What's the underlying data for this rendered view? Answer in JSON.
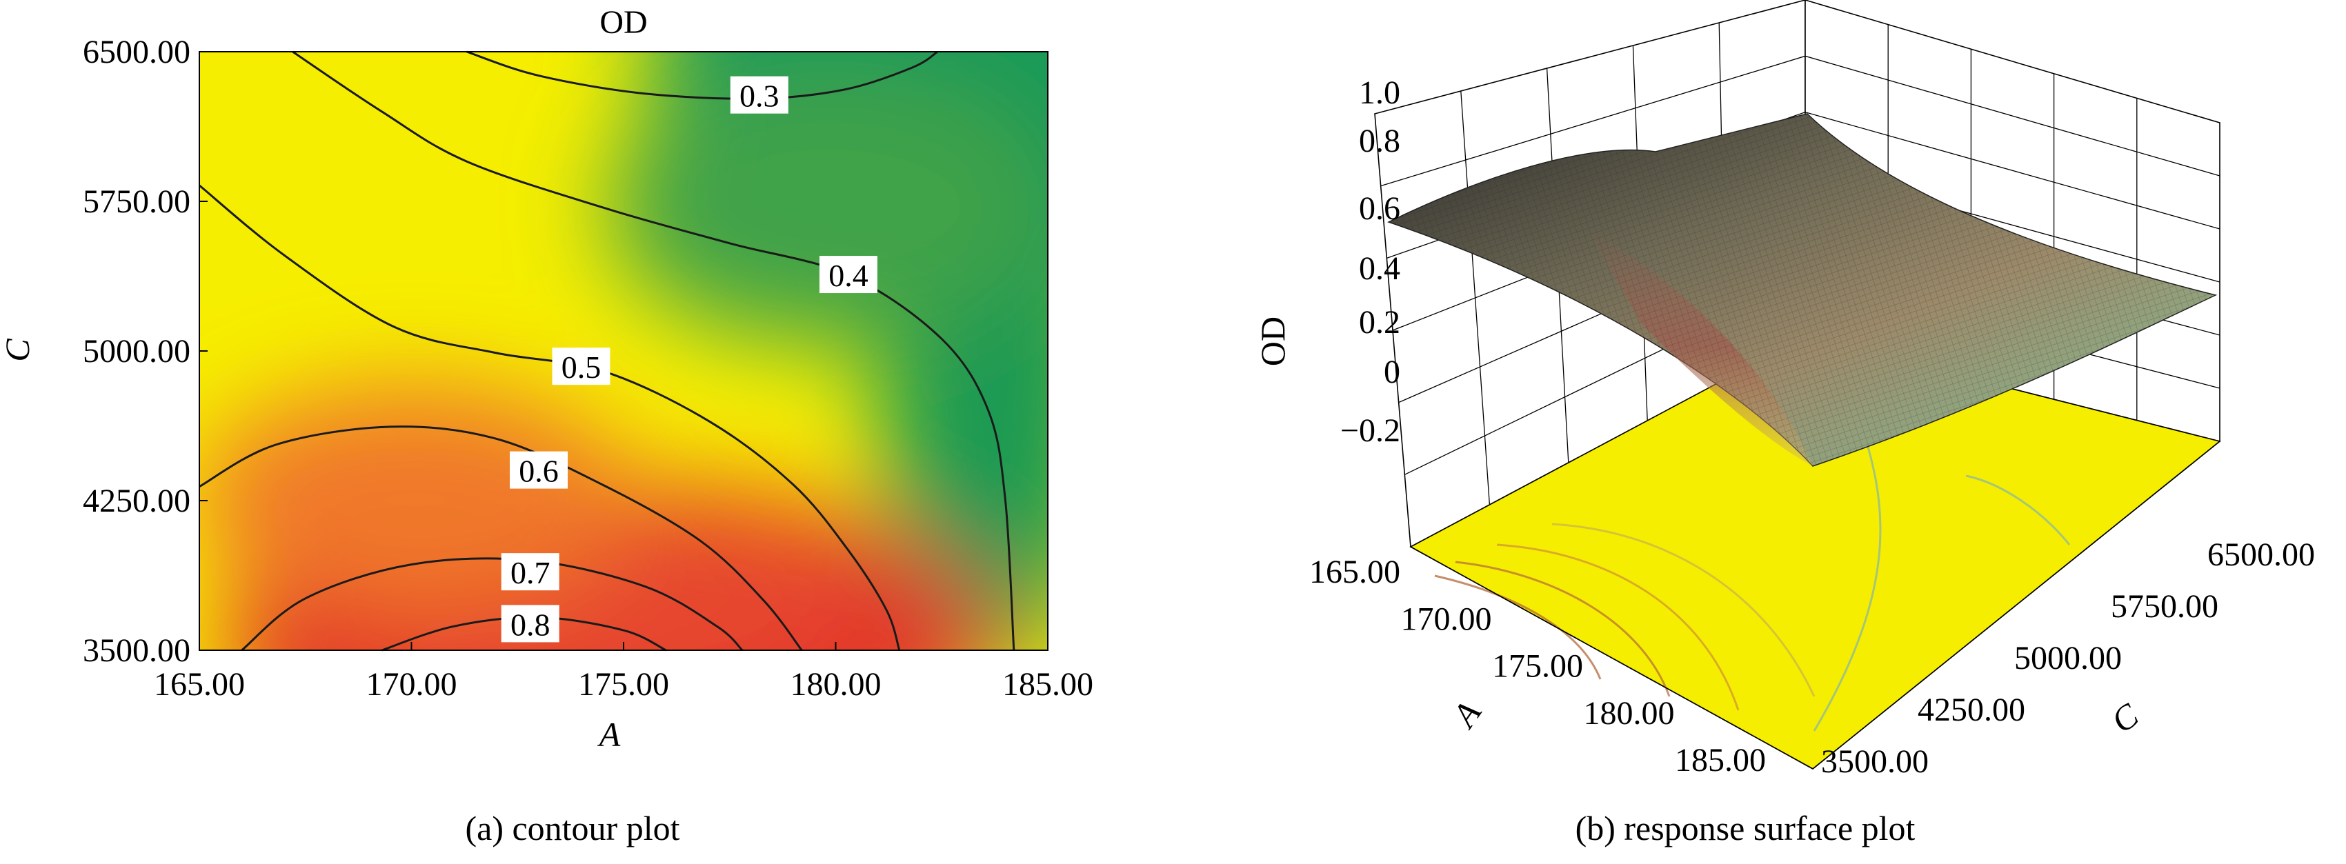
{
  "captions": {
    "a": "(a) contour plot",
    "b": "(b) response surface plot"
  },
  "chart_data": [
    {
      "type": "heatmap",
      "subtype": "contour",
      "title": "OD",
      "xlabel": "A",
      "ylabel": "C",
      "xlim": [
        165,
        185
      ],
      "ylim": [
        3500,
        6500
      ],
      "x_ticks": [
        "165.00",
        "170.00",
        "175.00",
        "180.00",
        "185.00"
      ],
      "y_ticks": [
        "3500.00",
        "4250.00",
        "5000.00",
        "5750.00",
        "6500.00"
      ],
      "contour_levels": [
        {
          "level": 0.3,
          "label": "0.3",
          "label_at": [
            178.2,
            6280
          ],
          "points": [
            [
              171.3,
              6500
            ],
            [
              173.0,
              6380
            ],
            [
              175.5,
              6290
            ],
            [
              178.2,
              6265
            ],
            [
              180.2,
              6310
            ],
            [
              181.8,
              6420
            ],
            [
              182.4,
              6500
            ]
          ]
        },
        {
          "level": 0.4,
          "label": "0.4",
          "label_at": [
            180.3,
            5380
          ],
          "points": [
            [
              167.2,
              6500
            ],
            [
              169.3,
              6200
            ],
            [
              171.3,
              5950
            ],
            [
              174.5,
              5720
            ],
            [
              177.5,
              5540
            ],
            [
              180.3,
              5380
            ],
            [
              182.5,
              5060
            ],
            [
              183.6,
              4700
            ],
            [
              184.0,
              4250
            ],
            [
              184.2,
              3500
            ]
          ]
        },
        {
          "level": 0.5,
          "label": "0.5",
          "label_at": [
            174.0,
            4920
          ],
          "points": [
            [
              165.0,
              5830
            ],
            [
              167.0,
              5480
            ],
            [
              169.6,
              5120
            ],
            [
              172.0,
              4990
            ],
            [
              174.5,
              4900
            ],
            [
              177.0,
              4650
            ],
            [
              179.0,
              4330
            ],
            [
              180.3,
              4000
            ],
            [
              181.2,
              3700
            ],
            [
              181.5,
              3500
            ]
          ]
        },
        {
          "level": 0.6,
          "label": "0.6",
          "label_at": [
            173.0,
            4400
          ],
          "points": [
            [
              165.0,
              4320
            ],
            [
              166.8,
              4530
            ],
            [
              169.5,
              4620
            ],
            [
              172.0,
              4560
            ],
            [
              174.5,
              4330
            ],
            [
              176.8,
              4050
            ],
            [
              178.3,
              3750
            ],
            [
              179.2,
              3500
            ]
          ]
        },
        {
          "level": 0.7,
          "label": "0.7",
          "label_at": [
            172.8,
            3890
          ],
          "points": [
            [
              166.0,
              3500
            ],
            [
              167.5,
              3760
            ],
            [
              170.0,
              3930
            ],
            [
              172.8,
              3950
            ],
            [
              175.5,
              3820
            ],
            [
              177.2,
              3620
            ],
            [
              177.8,
              3500
            ]
          ]
        },
        {
          "level": 0.8,
          "label": "0.8",
          "label_at": [
            172.8,
            3630
          ],
          "points": [
            [
              169.3,
              3500
            ],
            [
              171.0,
              3620
            ],
            [
              173.0,
              3665
            ],
            [
              175.0,
              3600
            ],
            [
              176.0,
              3500
            ]
          ]
        }
      ],
      "colormap": [
        "#2e9a4c",
        "#f6ee00",
        "#e03b2e"
      ]
    },
    {
      "type": "surface",
      "zlabel": "OD",
      "xlabel": "A",
      "ylabel": "C",
      "xlim": [
        165,
        185
      ],
      "ylim": [
        3500,
        6500
      ],
      "zlim": [
        -0.2,
        1.0
      ],
      "x_ticks": [
        "165.00",
        "170.00",
        "175.00",
        "180.00",
        "185.00"
      ],
      "y_ticks": [
        "3500.00",
        "4250.00",
        "5000.00",
        "5750.00",
        "6500.00"
      ],
      "z_ticks": [
        "1.0",
        "0.8",
        "0.6",
        "0.4",
        "0.2",
        "0",
        "−0.2"
      ],
      "floor_color": "#f6ee00"
    }
  ]
}
